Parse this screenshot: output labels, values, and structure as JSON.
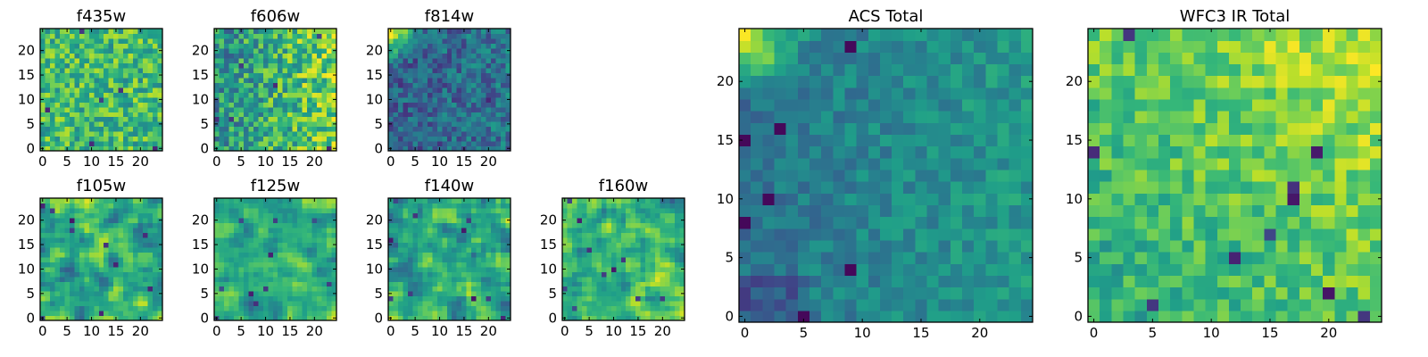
{
  "chart_data": [
    {
      "type": "heatmap",
      "title": "f435w",
      "colormap": "viridis",
      "grid": false,
      "xlim": [
        -0.5,
        24.5
      ],
      "ylim": [
        -0.5,
        24.5
      ],
      "x_ticks": [
        "0",
        "5",
        "10",
        "15",
        "20"
      ],
      "y_ticks": [
        "0",
        "5",
        "10",
        "15",
        "20"
      ],
      "texture": "fine noise, mostly green-yellow"
    },
    {
      "type": "heatmap",
      "title": "f606w",
      "colormap": "viridis",
      "grid": false,
      "xlim": [
        -0.5,
        24.5
      ],
      "ylim": [
        -0.5,
        24.5
      ],
      "x_ticks": [
        "0",
        "5",
        "10",
        "15",
        "20"
      ],
      "y_ticks": [
        "0",
        "5",
        "10",
        "15",
        "20"
      ],
      "texture": "fine noise, brighter toward right"
    },
    {
      "type": "heatmap",
      "title": "f814w",
      "colormap": "viridis",
      "grid": false,
      "xlim": [
        -0.5,
        24.5
      ],
      "ylim": [
        -0.5,
        24.5
      ],
      "x_ticks": [
        "0",
        "5",
        "10",
        "15",
        "20"
      ],
      "y_ticks": [
        "0",
        "5",
        "10",
        "15",
        "20"
      ],
      "texture": "dark blue with bright upper-left corner"
    },
    {
      "type": "heatmap",
      "title": "f105w",
      "colormap": "viridis",
      "grid": false,
      "xlim": [
        -0.5,
        24.5
      ],
      "ylim": [
        -0.5,
        24.5
      ],
      "x_ticks": [
        "0",
        "5",
        "10",
        "15",
        "20"
      ],
      "y_ticks": [
        "0",
        "5",
        "10",
        "15",
        "20"
      ],
      "texture": "smooth blobs, green-yellow"
    },
    {
      "type": "heatmap",
      "title": "f125w",
      "colormap": "viridis",
      "grid": false,
      "xlim": [
        -0.5,
        24.5
      ],
      "ylim": [
        -0.5,
        24.5
      ],
      "x_ticks": [
        "0",
        "5",
        "10",
        "15",
        "20"
      ],
      "y_ticks": [
        "0",
        "5",
        "10",
        "15",
        "20"
      ],
      "texture": "smooth blobs, green-yellow"
    },
    {
      "type": "heatmap",
      "title": "f140w",
      "colormap": "viridis",
      "grid": false,
      "xlim": [
        -0.5,
        24.5
      ],
      "ylim": [
        -0.5,
        24.5
      ],
      "x_ticks": [
        "0",
        "5",
        "10",
        "15",
        "20"
      ],
      "y_ticks": [
        "0",
        "5",
        "10",
        "15",
        "20"
      ],
      "texture": "smooth blobs, green-yellow"
    },
    {
      "type": "heatmap",
      "title": "f160w",
      "colormap": "viridis",
      "grid": false,
      "xlim": [
        -0.5,
        24.5
      ],
      "ylim": [
        -0.5,
        24.5
      ],
      "x_ticks": [
        "0",
        "5",
        "10",
        "15",
        "20"
      ],
      "y_ticks": [
        "0",
        "5",
        "10",
        "15",
        "20"
      ],
      "texture": "smooth blobs, green-yellow"
    },
    {
      "type": "heatmap",
      "title": "ACS Total",
      "colormap": "viridis",
      "grid": false,
      "xlim": [
        -0.5,
        24.5
      ],
      "ylim": [
        -0.5,
        24.5
      ],
      "x_ticks": [
        "0",
        "5",
        "10",
        "15",
        "20"
      ],
      "y_ticks": [
        "0",
        "5",
        "10",
        "15",
        "20"
      ],
      "texture": "teal field, bright yellow upper-left, darker left and bottom-left"
    },
    {
      "type": "heatmap",
      "title": "WFC3 IR Total",
      "colormap": "viridis",
      "grid": false,
      "xlim": [
        -0.5,
        24.5
      ],
      "ylim": [
        -0.5,
        24.5
      ],
      "x_ticks": [
        "0",
        "5",
        "10",
        "15",
        "20"
      ],
      "y_ticks": [
        "0",
        "5",
        "10",
        "15",
        "20"
      ],
      "texture": "green field, brighter upper-right, scattered dark pixels"
    }
  ]
}
